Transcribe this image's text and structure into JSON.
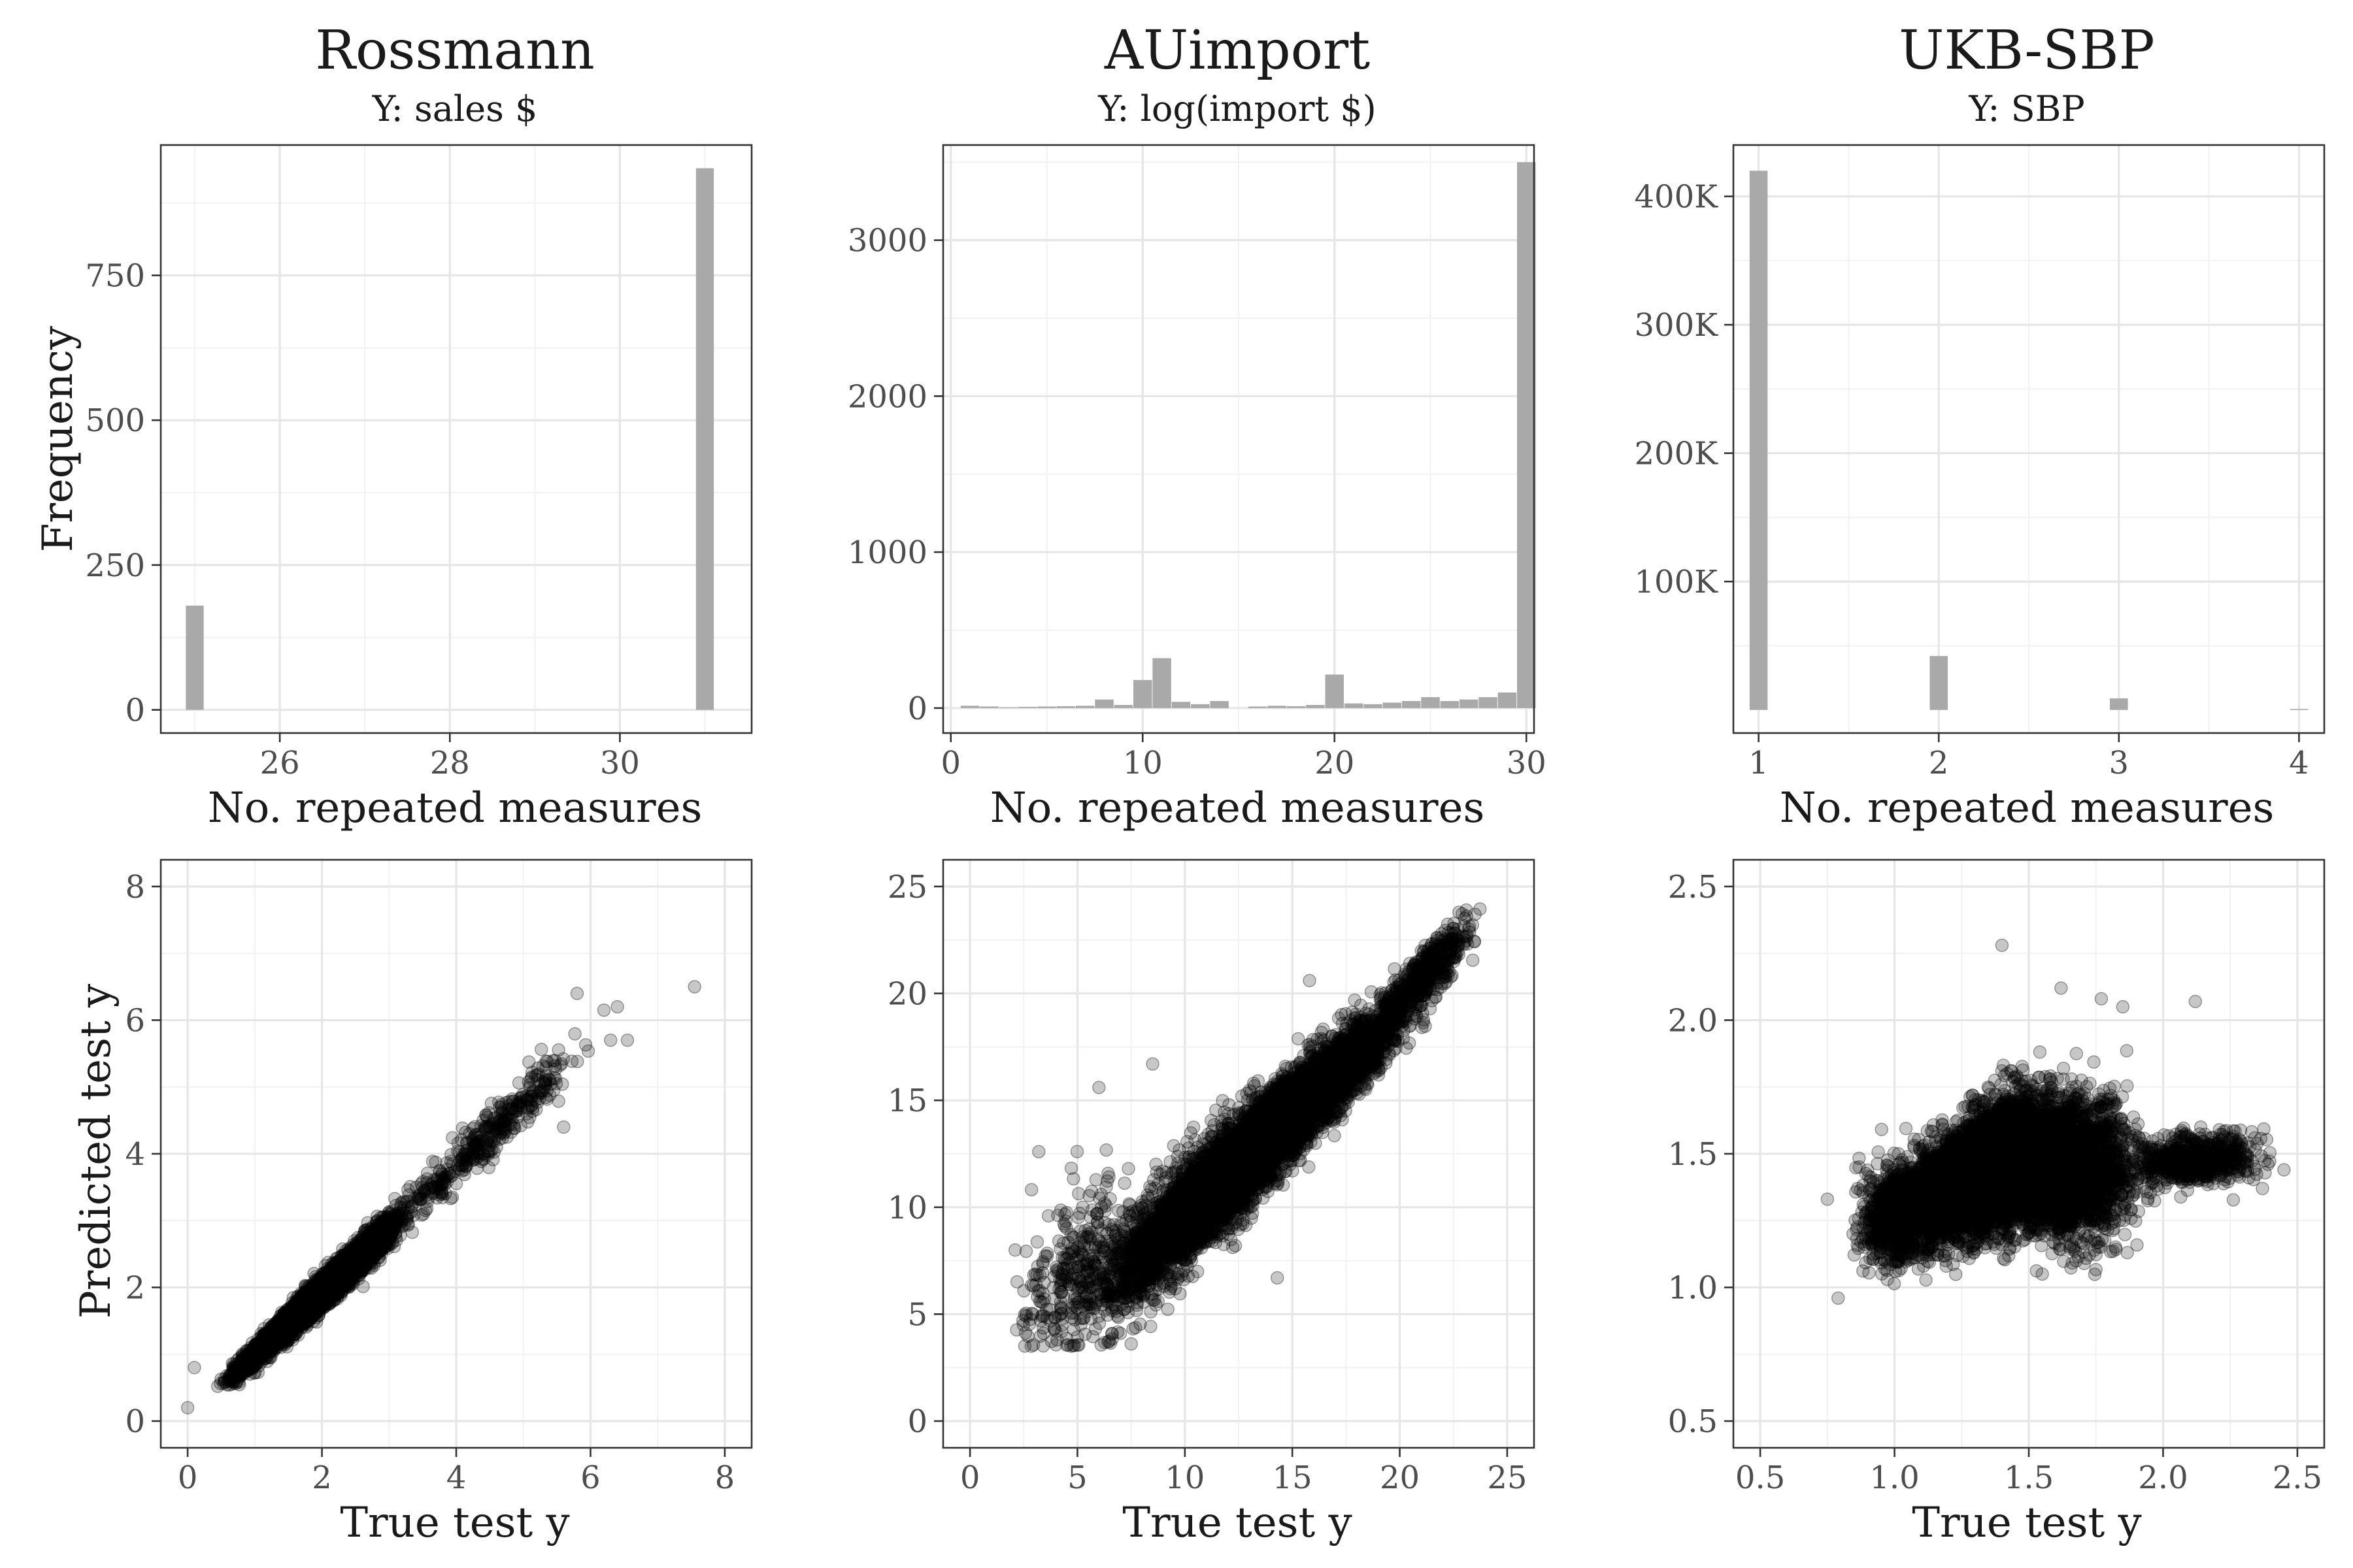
{
  "chart_data": [
    {
      "type": "bar",
      "panel": "histogram",
      "title": "Rossmann",
      "subtitle": "Y: sales $",
      "xlabel": "No. repeated measures",
      "ylabel": "Frequency",
      "xlim": [
        24.6,
        31.55
      ],
      "ylim": [
        -40,
        975
      ],
      "xticks": [
        26,
        28,
        30
      ],
      "yticks": [
        0,
        250,
        500,
        750
      ],
      "ytick_labels": [
        "0",
        "250",
        "500",
        "750"
      ],
      "bin_width": 0.21,
      "bins": [
        {
          "x": 25.0,
          "y": 180
        },
        {
          "x": 31.0,
          "y": 935
        }
      ]
    },
    {
      "type": "bar",
      "panel": "histogram",
      "title": "AUimport",
      "subtitle": "Y: log(import $)",
      "xlabel": "No. repeated measures",
      "ylabel": "",
      "xlim": [
        -0.4,
        30.4
      ],
      "ylim": [
        -160,
        3610
      ],
      "xticks": [
        0,
        10,
        20,
        30
      ],
      "yticks": [
        0,
        1000,
        2000,
        3000
      ],
      "ytick_labels": [
        "0",
        "1000",
        "2000",
        "3000"
      ],
      "bin_width": 0.97,
      "bins": [
        {
          "x": 1,
          "y": 15
        },
        {
          "x": 2,
          "y": 10
        },
        {
          "x": 3,
          "y": 5
        },
        {
          "x": 4,
          "y": 8
        },
        {
          "x": 5,
          "y": 10
        },
        {
          "x": 6,
          "y": 12
        },
        {
          "x": 7,
          "y": 15
        },
        {
          "x": 8,
          "y": 55
        },
        {
          "x": 9,
          "y": 20
        },
        {
          "x": 10,
          "y": 180
        },
        {
          "x": 11,
          "y": 320
        },
        {
          "x": 12,
          "y": 40
        },
        {
          "x": 13,
          "y": 25
        },
        {
          "x": 14,
          "y": 45
        },
        {
          "x": 16,
          "y": 10
        },
        {
          "x": 17,
          "y": 15
        },
        {
          "x": 18,
          "y": 12
        },
        {
          "x": 19,
          "y": 20
        },
        {
          "x": 20,
          "y": 215
        },
        {
          "x": 21,
          "y": 30
        },
        {
          "x": 22,
          "y": 25
        },
        {
          "x": 23,
          "y": 35
        },
        {
          "x": 24,
          "y": 45
        },
        {
          "x": 25,
          "y": 70
        },
        {
          "x": 26,
          "y": 45
        },
        {
          "x": 27,
          "y": 55
        },
        {
          "x": 28,
          "y": 70
        },
        {
          "x": 29,
          "y": 100
        },
        {
          "x": 30,
          "y": 3500
        }
      ]
    },
    {
      "type": "bar",
      "panel": "histogram",
      "title": "UKB-SBP",
      "subtitle": "Y: SBP",
      "xlabel": "No. repeated measures",
      "ylabel": "",
      "xlim": [
        0.86,
        4.14
      ],
      "ylim": [
        -18000,
        440000
      ],
      "xticks": [
        1,
        2,
        3,
        4
      ],
      "yticks": [
        100000,
        200000,
        300000,
        400000
      ],
      "ytick_labels": [
        "100K",
        "200K",
        "300K",
        "400K"
      ],
      "bin_width": 0.1,
      "bins": [
        {
          "x": 1.0,
          "y": 420000
        },
        {
          "x": 2.0,
          "y": 42000
        },
        {
          "x": 3.0,
          "y": 9000
        },
        {
          "x": 4.0,
          "y": 800
        }
      ]
    },
    {
      "type": "scatter",
      "panel": "scatter",
      "xlabel": "True test y",
      "ylabel": "Predicted test y",
      "xlim": [
        -0.4,
        8.4
      ],
      "ylim": [
        -0.4,
        8.4
      ],
      "xticks": [
        0,
        2,
        4,
        6,
        8
      ],
      "yticks": [
        0,
        2,
        4,
        6,
        8
      ],
      "point_color": "#000000",
      "point_alpha": 0.22,
      "cloud": [
        {
          "x0": 0.6,
          "x1": 3.2,
          "n": 6000,
          "slope": 0.94,
          "intercept": 0.05,
          "sd": 0.08,
          "sdGrow": 0.02,
          "yShift": 0,
          "bump": 0,
          "yMin": 0.5
        },
        {
          "x0": 3.0,
          "x1": 6.0,
          "n": 380,
          "slope": 0.94,
          "intercept": 0.05,
          "sd": 0.14,
          "sdGrow": 0.02,
          "yShift": 0,
          "bump": 0,
          "yMin": 0.5
        }
      ],
      "outliers": [
        [
          0.0,
          0.2
        ],
        [
          0.1,
          0.8
        ],
        [
          7.55,
          6.5
        ],
        [
          6.2,
          6.15
        ],
        [
          6.4,
          6.2
        ],
        [
          6.55,
          5.7
        ],
        [
          6.3,
          5.7
        ],
        [
          5.8,
          6.4
        ],
        [
          4.6,
          4.1
        ],
        [
          5.6,
          4.4
        ],
        [
          4.2,
          4.3
        ]
      ]
    },
    {
      "type": "scatter",
      "panel": "scatter",
      "xlabel": "True test y",
      "ylabel": "",
      "xlim": [
        -1.25,
        26.25
      ],
      "ylim": [
        -1.25,
        26.25
      ],
      "xticks": [
        0,
        5,
        10,
        15,
        20,
        25
      ],
      "yticks": [
        0,
        5,
        10,
        15,
        20,
        25
      ],
      "point_color": "#000000",
      "point_alpha": 0.22,
      "cloud": [
        {
          "x0": 6.0,
          "x1": 21.0,
          "n": 7000,
          "slope": 0.93,
          "intercept": 0.4,
          "sd": 1.3,
          "sdGrow": -0.04,
          "yShift": 0,
          "bump": 0,
          "yMin": 3.5
        },
        {
          "x0": 2.0,
          "x1": 8.0,
          "n": 350,
          "slope": 0.5,
          "intercept": 4.4,
          "sd": 1.9,
          "sdGrow": 0,
          "yShift": 0,
          "bump": 0,
          "yMin": 3.5
        },
        {
          "x0": 19.0,
          "x1": 23.5,
          "n": 420,
          "slope": 0.97,
          "intercept": 0.4,
          "sd": 0.6,
          "sdGrow": 0,
          "yShift": 0,
          "bump": 0,
          "yMin": 3.5
        }
      ],
      "outliers": [
        [
          23.1,
          23.9
        ],
        [
          23.5,
          23.7
        ],
        [
          21.8,
          22.1
        ],
        [
          22.4,
          22.8
        ],
        [
          2.1,
          8.0
        ],
        [
          3.2,
          12.6
        ],
        [
          4.0,
          4.2
        ],
        [
          7.0,
          4.1
        ],
        [
          14.3,
          6.7
        ],
        [
          6.0,
          15.6
        ],
        [
          8.5,
          16.7
        ],
        [
          15.8,
          20.6
        ]
      ]
    },
    {
      "type": "scatter",
      "panel": "scatter",
      "xlabel": "True test y",
      "ylabel": "",
      "xlim": [
        0.4,
        2.6
      ],
      "ylim": [
        0.4,
        2.6
      ],
      "xticks": [
        0.5,
        1.0,
        1.5,
        2.0,
        2.5
      ],
      "ytick_labels": [
        "0.5",
        "1.0",
        "1.5",
        "2.0",
        "2.5"
      ],
      "xtick_labels": [
        "0.5",
        "1.0",
        "1.5",
        "2.0",
        "2.5"
      ],
      "yticks": [
        0.5,
        1.0,
        1.5,
        2.0,
        2.5
      ],
      "point_color": "#000000",
      "point_alpha": 0.22,
      "cloud": [
        {
          "x0": 0.95,
          "x1": 1.9,
          "n": 9000,
          "slope": 0.2,
          "intercept": 1.08,
          "sd": 0.085,
          "sdGrow": 0.05,
          "yShift": 0,
          "bump": 0.1,
          "yMin": 0.95
        },
        {
          "x0": 0.85,
          "x1": 1.1,
          "n": 500,
          "slope": 0.2,
          "intercept": 1.08,
          "sd": 0.09,
          "sdGrow": 0,
          "yShift": 0,
          "bump": 0,
          "yMin": 0.95
        },
        {
          "x0": 1.85,
          "x1": 2.4,
          "n": 600,
          "slope": 0.05,
          "intercept": 1.37,
          "sd": 0.05,
          "sdGrow": 0,
          "yShift": 0,
          "bump": 0,
          "yMin": 0.95
        }
      ],
      "outliers": [
        [
          1.4,
          2.28
        ],
        [
          0.75,
          1.33
        ],
        [
          0.79,
          0.96
        ],
        [
          2.45,
          1.44
        ],
        [
          2.37,
          1.37
        ],
        [
          1.77,
          2.08
        ],
        [
          1.85,
          2.05
        ],
        [
          2.12,
          2.07
        ],
        [
          1.62,
          2.12
        ],
        [
          1.55,
          1.05
        ]
      ]
    }
  ]
}
